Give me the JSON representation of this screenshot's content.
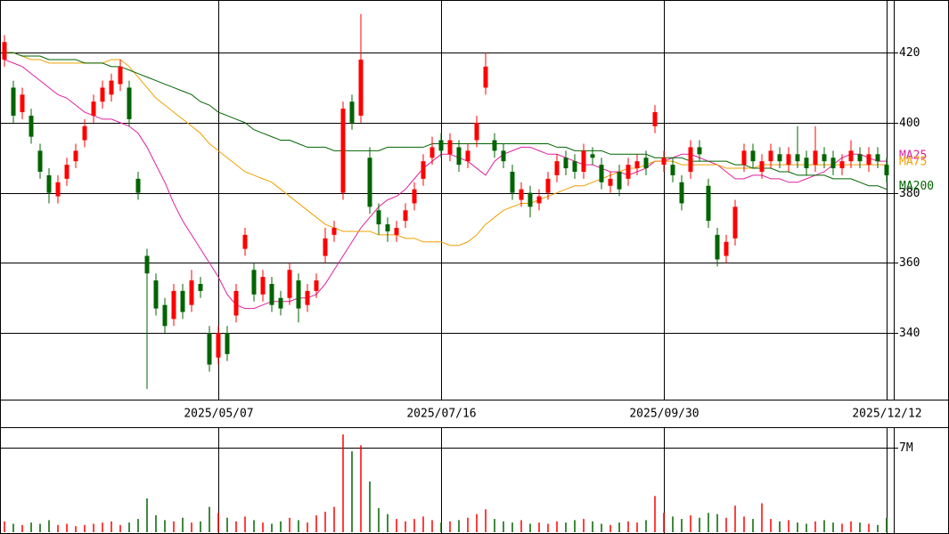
{
  "chart_data": {
    "type": "candlestick",
    "categories": [
      null,
      null,
      null,
      null,
      null,
      null,
      null,
      null,
      null,
      null,
      null,
      null,
      null,
      null,
      null,
      null,
      null,
      null,
      null,
      null,
      null,
      null,
      null,
      null,
      "2025/05/07",
      null,
      null,
      null,
      null,
      null,
      null,
      null,
      null,
      null,
      null,
      null,
      null,
      null,
      null,
      null,
      null,
      null,
      null,
      null,
      null,
      null,
      null,
      null,
      null,
      "2025/07/16",
      null,
      null,
      null,
      null,
      null,
      null,
      null,
      null,
      null,
      null,
      null,
      null,
      null,
      null,
      null,
      null,
      null,
      null,
      null,
      null,
      null,
      null,
      null,
      null,
      "2025/09/30",
      null,
      null,
      null,
      null,
      null,
      null,
      null,
      null,
      null,
      null,
      null,
      null,
      null,
      null,
      null,
      null,
      null,
      null,
      null,
      null,
      null,
      null,
      null,
      null,
      "2025/12/12"
    ],
    "open": [
      418,
      410,
      403,
      402,
      392,
      385,
      379,
      384,
      389,
      395,
      402,
      406,
      408,
      411,
      410,
      384,
      362,
      355,
      348,
      344,
      352,
      348,
      354,
      340,
      333,
      340,
      345,
      364,
      358,
      351,
      354,
      350,
      350,
      355,
      348,
      352,
      362,
      368,
      380,
      406,
      402,
      390,
      375,
      371,
      368,
      372,
      377,
      384,
      390,
      395,
      391,
      393,
      389,
      395,
      410,
      395,
      392,
      386,
      378,
      380,
      377,
      380,
      385,
      390,
      389,
      386,
      391,
      388,
      382,
      386,
      384,
      387,
      390,
      399,
      388,
      388,
      383,
      386,
      393,
      382,
      368,
      362,
      367,
      388,
      392,
      386,
      389,
      391,
      388,
      391,
      390,
      388,
      391,
      390,
      387,
      389,
      391,
      388,
      391,
      388
    ],
    "high": [
      425,
      412,
      410,
      404,
      394,
      387,
      385,
      390,
      394,
      401,
      408,
      412,
      414,
      418,
      412,
      386,
      364,
      357,
      350,
      354,
      354,
      358,
      356,
      342,
      342,
      342,
      354,
      370,
      360,
      358,
      356,
      352,
      360,
      357,
      354,
      357,
      370,
      372,
      406,
      408,
      431,
      393,
      377,
      373,
      372,
      377,
      383,
      391,
      396,
      397,
      397,
      395,
      394,
      402,
      420,
      397,
      394,
      388,
      383,
      382,
      381,
      386,
      391,
      392,
      391,
      394,
      393,
      390,
      386,
      388,
      390,
      391,
      392,
      405,
      392,
      390,
      385,
      395,
      395,
      384,
      370,
      368,
      378,
      394,
      394,
      391,
      394,
      393,
      393,
      399,
      392,
      399,
      393,
      392,
      391,
      395,
      393,
      393,
      393,
      390
    ],
    "low": [
      416,
      400,
      401,
      394,
      384,
      377,
      377,
      382,
      387,
      393,
      400,
      404,
      406,
      409,
      399,
      378,
      324,
      345,
      340,
      342,
      344,
      346,
      350,
      329,
      331,
      332,
      343,
      362,
      349,
      349,
      346,
      345,
      348,
      343,
      346,
      350,
      360,
      366,
      378,
      398,
      400,
      374,
      368,
      366,
      366,
      370,
      375,
      382,
      388,
      390,
      389,
      386,
      387,
      393,
      408,
      390,
      387,
      378,
      376,
      373,
      375,
      378,
      383,
      385,
      384,
      384,
      388,
      381,
      380,
      379,
      382,
      385,
      385,
      397,
      386,
      383,
      375,
      384,
      389,
      370,
      359,
      360,
      365,
      386,
      387,
      384,
      387,
      387,
      386,
      387,
      385,
      386,
      387,
      385,
      385,
      387,
      387,
      386,
      387,
      383
    ],
    "close": [
      423,
      402,
      408,
      396,
      386,
      380,
      383,
      388,
      392,
      399,
      406,
      410,
      412,
      416,
      401,
      380,
      357,
      347,
      342,
      352,
      346,
      355,
      352,
      331,
      340,
      334,
      352,
      368,
      351,
      356,
      348,
      347,
      358,
      347,
      352,
      355,
      367,
      370,
      404,
      400,
      418,
      376,
      371,
      369,
      370,
      375,
      381,
      389,
      393,
      392,
      395,
      388,
      392,
      400,
      416,
      392,
      389,
      380,
      381,
      376,
      379,
      384,
      389,
      387,
      386,
      392,
      390,
      383,
      384,
      381,
      388,
      389,
      387,
      403,
      390,
      385,
      377,
      393,
      391,
      372,
      361,
      366,
      376,
      392,
      389,
      389,
      392,
      389,
      391,
      389,
      387,
      392,
      389,
      387,
      389,
      392,
      389,
      391,
      389,
      385
    ],
    "up_color": "#ff0000",
    "down_color": "#006400",
    "ylim": [
      321,
      435
    ],
    "yticks": [
      340,
      360,
      380,
      400,
      420
    ],
    "grid": true,
    "moving_averages": [
      {
        "name": "MA25",
        "color": "#e020a0",
        "values": [
          418,
          417,
          416,
          414,
          412,
          410,
          408,
          407,
          405,
          403,
          402,
          401,
          401,
          400,
          399,
          397,
          393,
          388,
          383,
          377,
          372,
          368,
          364,
          360,
          356,
          351,
          348,
          347,
          347,
          348,
          349,
          349,
          349,
          350,
          350,
          351,
          354,
          358,
          362,
          366,
          370,
          373,
          376,
          378,
          379,
          381,
          384,
          387,
          389,
          391,
          391,
          390,
          389,
          387,
          385,
          389,
          391,
          392,
          393,
          393,
          392,
          391,
          391,
          390,
          389,
          388,
          388,
          387,
          386,
          386,
          385,
          386,
          387,
          389,
          389,
          390,
          391,
          391,
          390,
          389,
          388,
          386,
          384,
          384,
          385,
          385,
          384,
          384,
          383,
          383,
          384,
          385,
          386,
          388,
          390,
          391,
          391,
          390,
          389,
          389
        ]
      },
      {
        "name": "MA75",
        "color": "#f0a000",
        "values": [
          420,
          420,
          419,
          418,
          418,
          417,
          417,
          417,
          417,
          417,
          417,
          417,
          418,
          418,
          416,
          413,
          410,
          407,
          405,
          403,
          401,
          399,
          397,
          394,
          392,
          390,
          388,
          386,
          385,
          384,
          383,
          381,
          379,
          377,
          375,
          373,
          371,
          370,
          369,
          369,
          369,
          369,
          368,
          368,
          368,
          367,
          367,
          366,
          366,
          366,
          365,
          365,
          366,
          368,
          371,
          373,
          375,
          376,
          377,
          377,
          378,
          379,
          380,
          381,
          382,
          382,
          383,
          384,
          385,
          386,
          387,
          387,
          388,
          389,
          389,
          389,
          388,
          388,
          388,
          388,
          388,
          387,
          387,
          387,
          387,
          388,
          388,
          388,
          388,
          388,
          388,
          388,
          388,
          388,
          388,
          388,
          388,
          388,
          388,
          388
        ]
      },
      {
        "name": "MA200",
        "color": "#006400",
        "values": [
          420,
          420,
          419,
          419,
          419,
          418,
          418,
          418,
          418,
          417,
          417,
          417,
          416,
          416,
          415,
          414,
          413,
          412,
          411,
          410,
          409,
          408,
          406,
          405,
          403,
          402,
          401,
          400,
          398,
          397,
          396,
          395,
          395,
          394,
          393,
          393,
          393,
          392,
          392,
          392,
          392,
          392,
          392,
          393,
          393,
          393,
          393,
          393,
          394,
          394,
          394,
          394,
          394,
          394,
          394,
          394,
          394,
          394,
          394,
          394,
          394,
          394,
          393,
          393,
          392,
          392,
          392,
          392,
          391,
          391,
          391,
          391,
          391,
          390,
          390,
          390,
          390,
          389,
          389,
          389,
          389,
          389,
          388,
          388,
          387,
          387,
          387,
          386,
          386,
          385,
          385,
          385,
          385,
          384,
          384,
          384,
          383,
          382,
          382,
          381
        ]
      }
    ],
    "volume": {
      "values": [
        900000,
        700000,
        600000,
        800000,
        700000,
        1000000,
        600000,
        700000,
        500000,
        600000,
        700000,
        800000,
        900000,
        600000,
        800000,
        1100000,
        2800000,
        1400000,
        1000000,
        900000,
        1200000,
        800000,
        900000,
        2100000,
        1600000,
        1200000,
        900000,
        1300000,
        1000000,
        800000,
        700000,
        900000,
        1200000,
        1000000,
        800000,
        1400000,
        1700000,
        2100000,
        8100000,
        6700000,
        7200000,
        4200000,
        2000000,
        1500000,
        1100000,
        900000,
        1100000,
        1300000,
        1000000,
        800000,
        900000,
        1000000,
        1200000,
        1500000,
        1900000,
        1100000,
        900000,
        800000,
        1000000,
        700000,
        800000,
        700000,
        900000,
        800000,
        1000000,
        1100000,
        900000,
        700000,
        600000,
        800000,
        900000,
        800000,
        1000000,
        3000000,
        1600000,
        1300000,
        1100000,
        1400000,
        1200000,
        1600000,
        1500000,
        1200000,
        2200000,
        1300000,
        1100000,
        2400000,
        1100000,
        900000,
        1000000,
        800000,
        700000,
        900000,
        1000000,
        800000,
        700000,
        900000,
        800000,
        700000,
        600000,
        1200000
      ],
      "ylim": [
        0,
        8700000
      ],
      "yticks": [
        {
          "value": 7000000,
          "label": "7M"
        }
      ]
    }
  }
}
